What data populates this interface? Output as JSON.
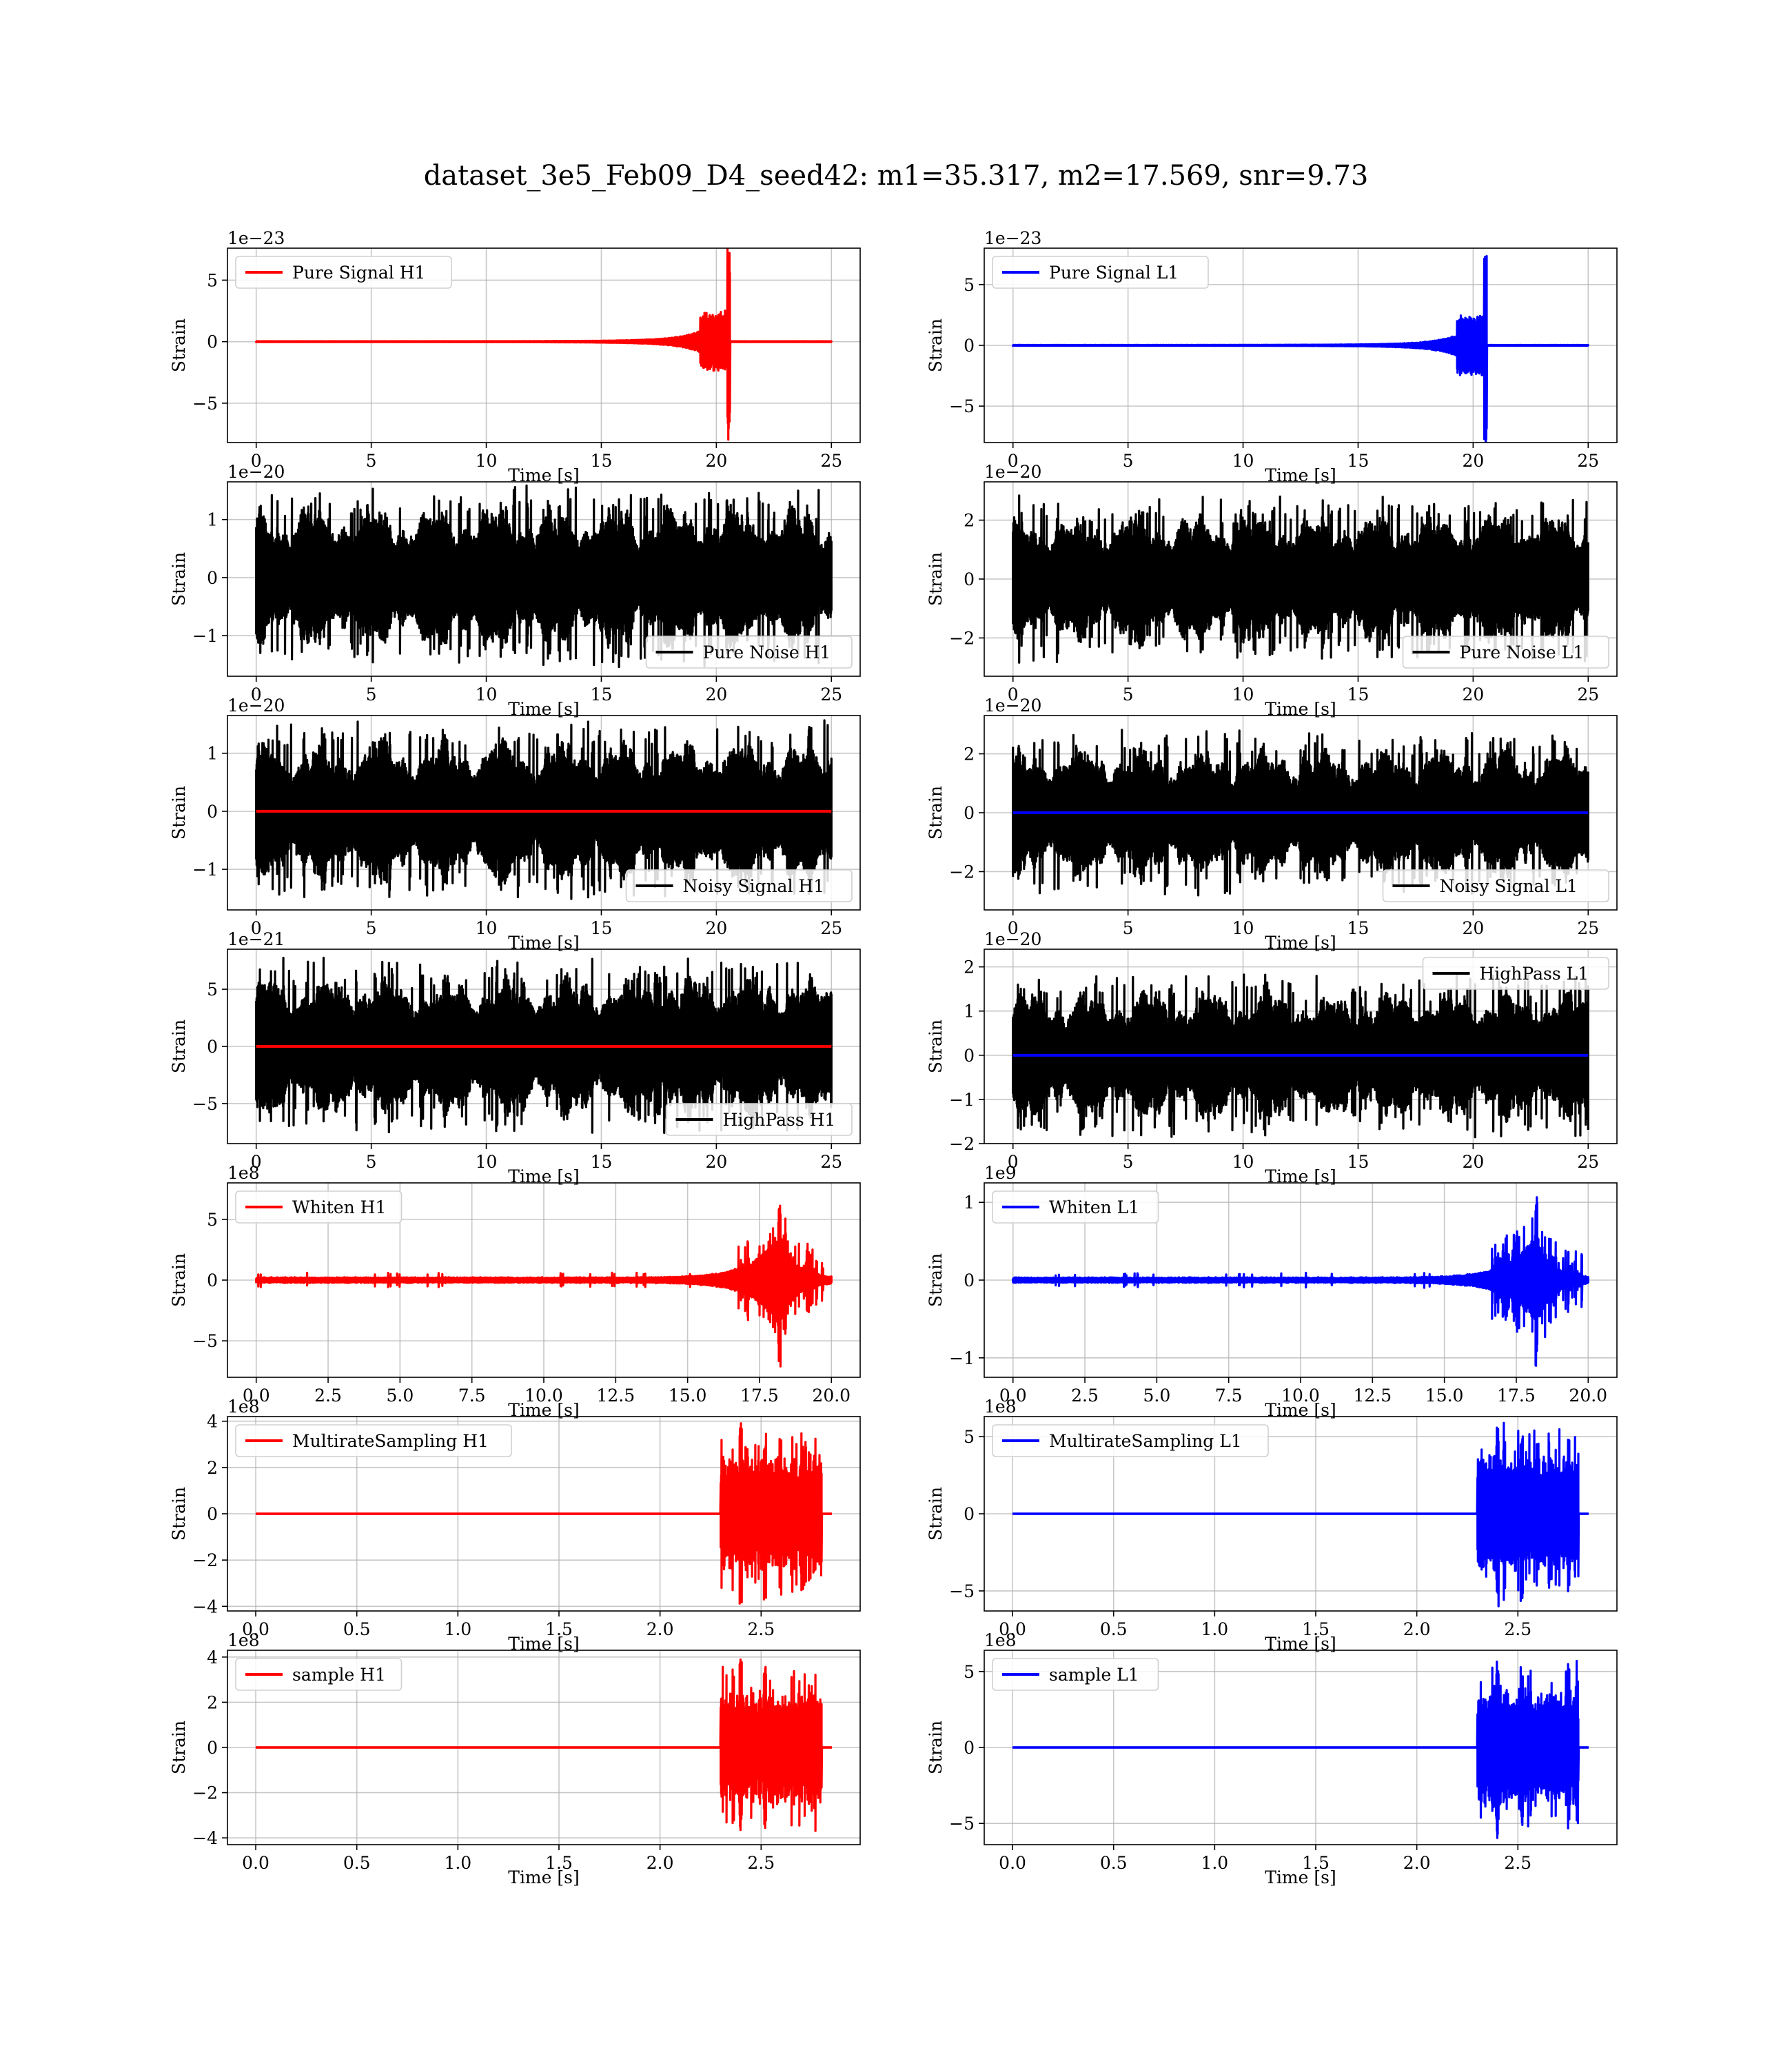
{
  "figure": {
    "title": "dataset_3e5_Feb09_D4_seed42: m1=35.317, m2=17.569, snr=9.73"
  },
  "colors": {
    "h1": "#ff0000",
    "l1": "#0000ff",
    "noise": "#000000"
  },
  "chart_data": [
    {
      "id": "pure-signal-h1",
      "type": "line",
      "detector": "H1",
      "xlabel": "Time [s]",
      "ylabel": "Strain",
      "offset": "1e−23",
      "xlim": [
        -1.25,
        26.25
      ],
      "ylim": [
        -8.2,
        7.6
      ],
      "xticks": [
        0,
        5,
        10,
        15,
        20,
        25
      ],
      "yticks": [
        -5,
        0,
        5
      ],
      "legend": {
        "placement": "upper left"
      },
      "series": [
        {
          "name": "Pure Signal H1",
          "color": "#ff0000",
          "kind": "chirp",
          "x_range": [
            0,
            25
          ],
          "peak_time": 20.6,
          "amplitude": 8.0
        }
      ]
    },
    {
      "id": "pure-signal-l1",
      "type": "line",
      "detector": "L1",
      "xlabel": "Time [s]",
      "ylabel": "Strain",
      "offset": "1e−23",
      "xlim": [
        -1.25,
        26.25
      ],
      "ylim": [
        -8.0,
        8.0
      ],
      "xticks": [
        0,
        5,
        10,
        15,
        20,
        25
      ],
      "yticks": [
        -5,
        0,
        5
      ],
      "legend": {
        "placement": "upper left"
      },
      "series": [
        {
          "name": "Pure Signal L1",
          "color": "#0000ff",
          "kind": "chirp",
          "x_range": [
            0,
            25
          ],
          "peak_time": 20.6,
          "amplitude": 8.0
        }
      ]
    },
    {
      "id": "pure-noise-h1",
      "type": "line",
      "detector": "H1",
      "xlabel": "Time [s]",
      "ylabel": "Strain",
      "offset": "1e−20",
      "xlim": [
        -1.25,
        26.25
      ],
      "ylim": [
        -1.7,
        1.65
      ],
      "xticks": [
        0,
        5,
        10,
        15,
        20,
        25
      ],
      "yticks": [
        -1,
        0,
        1
      ],
      "legend": {
        "placement": "lower right"
      },
      "series": [
        {
          "name": "Pure Noise H1",
          "color": "#000000",
          "kind": "noise",
          "x_range": [
            0,
            25
          ],
          "amplitude": 1.6
        }
      ]
    },
    {
      "id": "pure-noise-l1",
      "type": "line",
      "detector": "L1",
      "xlabel": "Time [s]",
      "ylabel": "Strain",
      "offset": "1e−20",
      "xlim": [
        -1.25,
        26.25
      ],
      "ylim": [
        -3.3,
        3.3
      ],
      "xticks": [
        0,
        5,
        10,
        15,
        20,
        25
      ],
      "yticks": [
        -2,
        0,
        2
      ],
      "legend": {
        "placement": "lower right"
      },
      "series": [
        {
          "name": "Pure Noise L1",
          "color": "#000000",
          "kind": "noise",
          "x_range": [
            0,
            25
          ],
          "amplitude": 2.9
        }
      ]
    },
    {
      "id": "noisy-signal-h1",
      "type": "line",
      "detector": "H1",
      "xlabel": "Time [s]",
      "ylabel": "Strain",
      "offset": "1e−20",
      "xlim": [
        -1.25,
        26.25
      ],
      "ylim": [
        -1.7,
        1.65
      ],
      "xticks": [
        0,
        5,
        10,
        15,
        20,
        25
      ],
      "yticks": [
        -1,
        0,
        1
      ],
      "legend": {
        "placement": "lower right"
      },
      "series": [
        {
          "name": "Noisy Signal H1",
          "color": "#000000",
          "kind": "noise",
          "x_range": [
            0,
            25
          ],
          "amplitude": 1.6
        },
        {
          "name": "",
          "color": "#ff0000",
          "kind": "flat",
          "x_range": [
            0,
            25
          ]
        }
      ]
    },
    {
      "id": "noisy-signal-l1",
      "type": "line",
      "detector": "L1",
      "xlabel": "Time [s]",
      "ylabel": "Strain",
      "offset": "1e−20",
      "xlim": [
        -1.25,
        26.25
      ],
      "ylim": [
        -3.3,
        3.3
      ],
      "xticks": [
        0,
        5,
        10,
        15,
        20,
        25
      ],
      "yticks": [
        -2,
        0,
        2
      ],
      "legend": {
        "placement": "lower right"
      },
      "series": [
        {
          "name": "Noisy Signal L1",
          "color": "#000000",
          "kind": "noise",
          "x_range": [
            0,
            25
          ],
          "amplitude": 2.9
        },
        {
          "name": "",
          "color": "#0000ff",
          "kind": "flat",
          "x_range": [
            0,
            25
          ]
        }
      ]
    },
    {
      "id": "highpass-h1",
      "type": "line",
      "detector": "H1",
      "xlabel": "Time [s]",
      "ylabel": "Strain",
      "offset": "1e−21",
      "xlim": [
        -1.25,
        26.25
      ],
      "ylim": [
        -8.5,
        8.5
      ],
      "xticks": [
        0,
        5,
        10,
        15,
        20,
        25
      ],
      "yticks": [
        -5,
        0,
        5
      ],
      "legend": {
        "placement": "lower right"
      },
      "series": [
        {
          "name": "HighPass H1",
          "color": "#000000",
          "kind": "noise",
          "x_range": [
            0,
            25
          ],
          "amplitude": 8.0
        },
        {
          "name": "",
          "color": "#ff0000",
          "kind": "flat",
          "x_range": [
            0,
            25
          ]
        }
      ]
    },
    {
      "id": "highpass-l1",
      "type": "line",
      "detector": "L1",
      "xlabel": "Time [s]",
      "ylabel": "Strain",
      "offset": "1e−20",
      "xlim": [
        -1.25,
        26.25
      ],
      "ylim": [
        -2.0,
        2.4
      ],
      "xticks": [
        0,
        5,
        10,
        15,
        20,
        25
      ],
      "yticks": [
        -2,
        -1,
        0,
        1,
        2
      ],
      "legend": {
        "placement": "upper right"
      },
      "series": [
        {
          "name": "HighPass L1",
          "color": "#000000",
          "kind": "noise",
          "x_range": [
            0,
            25
          ],
          "amplitude": 1.9
        },
        {
          "name": "",
          "color": "#0000ff",
          "kind": "flat",
          "x_range": [
            0,
            25
          ]
        }
      ]
    },
    {
      "id": "whiten-h1",
      "type": "line",
      "detector": "H1",
      "xlabel": "Time [s]",
      "ylabel": "Strain",
      "offset": "1e8",
      "xlim": [
        -1.0,
        21.0
      ],
      "ylim": [
        -8.0,
        8.0
      ],
      "xticks": [
        0.0,
        2.5,
        5.0,
        7.5,
        10.0,
        12.5,
        15.0,
        17.5,
        20.0
      ],
      "yticks": [
        -5,
        0,
        5
      ],
      "legend": {
        "placement": "upper left"
      },
      "series": [
        {
          "name": "Whiten H1",
          "color": "#ff0000",
          "kind": "burst",
          "x_range": [
            0,
            20
          ],
          "peak_time": 18.2,
          "amplitude": 7.6
        }
      ]
    },
    {
      "id": "whiten-l1",
      "type": "line",
      "detector": "L1",
      "xlabel": "Time [s]",
      "ylabel": "Strain",
      "offset": "1e9",
      "xlim": [
        -1.0,
        21.0
      ],
      "ylim": [
        -1.25,
        1.25
      ],
      "xticks": [
        0.0,
        2.5,
        5.0,
        7.5,
        10.0,
        12.5,
        15.0,
        17.5,
        20.0
      ],
      "yticks": [
        -1,
        0,
        1
      ],
      "legend": {
        "placement": "upper left"
      },
      "series": [
        {
          "name": "Whiten L1",
          "color": "#0000ff",
          "kind": "burst",
          "x_range": [
            0,
            20
          ],
          "peak_time": 18.2,
          "amplitude": 1.15
        }
      ]
    },
    {
      "id": "multirate-h1",
      "type": "line",
      "detector": "H1",
      "xlabel": "Time [s]",
      "ylabel": "Strain",
      "offset": "1e8",
      "xlim": [
        -0.14,
        2.99
      ],
      "ylim": [
        -4.2,
        4.2
      ],
      "xticks": [
        0.0,
        0.5,
        1.0,
        1.5,
        2.0,
        2.5
      ],
      "yticks": [
        -4,
        -2,
        0,
        2,
        4
      ],
      "legend": {
        "placement": "upper left"
      },
      "series": [
        {
          "name": "MultirateSampling H1",
          "color": "#ff0000",
          "kind": "segment",
          "x_range": [
            0,
            2.85
          ],
          "seg_start": 2.3,
          "seg_end": 2.8,
          "amplitude": 4.0
        }
      ]
    },
    {
      "id": "multirate-l1",
      "type": "line",
      "detector": "L1",
      "xlabel": "Time [s]",
      "ylabel": "Strain",
      "offset": "1e8",
      "xlim": [
        -0.14,
        2.99
      ],
      "ylim": [
        -6.3,
        6.3
      ],
      "xticks": [
        0.0,
        0.5,
        1.0,
        1.5,
        2.0,
        2.5
      ],
      "yticks": [
        -5,
        0,
        5
      ],
      "legend": {
        "placement": "upper left"
      },
      "series": [
        {
          "name": "MultirateSampling L1",
          "color": "#0000ff",
          "kind": "segment",
          "x_range": [
            0,
            2.85
          ],
          "seg_start": 2.3,
          "seg_end": 2.8,
          "amplitude": 6.0
        }
      ]
    },
    {
      "id": "sample-h1",
      "type": "line",
      "detector": "H1",
      "xlabel": "Time [s]",
      "ylabel": "Strain",
      "offset": "1e8",
      "xlim": [
        -0.14,
        2.99
      ],
      "ylim": [
        -4.3,
        4.3
      ],
      "xticks": [
        0.0,
        0.5,
        1.0,
        1.5,
        2.0,
        2.5
      ],
      "yticks": [
        -4,
        -2,
        0,
        2,
        4
      ],
      "legend": {
        "placement": "upper left"
      },
      "series": [
        {
          "name": "sample H1",
          "color": "#ff0000",
          "kind": "segment",
          "x_range": [
            0,
            2.85
          ],
          "seg_start": 2.3,
          "seg_end": 2.8,
          "amplitude": 4.0
        }
      ]
    },
    {
      "id": "sample-l1",
      "type": "line",
      "detector": "L1",
      "xlabel": "Time [s]",
      "ylabel": "Strain",
      "offset": "1e8",
      "xlim": [
        -0.14,
        2.99
      ],
      "ylim": [
        -6.4,
        6.4
      ],
      "xticks": [
        0.0,
        0.5,
        1.0,
        1.5,
        2.0,
        2.5
      ],
      "yticks": [
        -5,
        0,
        5
      ],
      "legend": {
        "placement": "upper left"
      },
      "series": [
        {
          "name": "sample L1",
          "color": "#0000ff",
          "kind": "segment",
          "x_range": [
            0,
            2.85
          ],
          "seg_start": 2.3,
          "seg_end": 2.8,
          "amplitude": 6.0
        }
      ]
    }
  ]
}
